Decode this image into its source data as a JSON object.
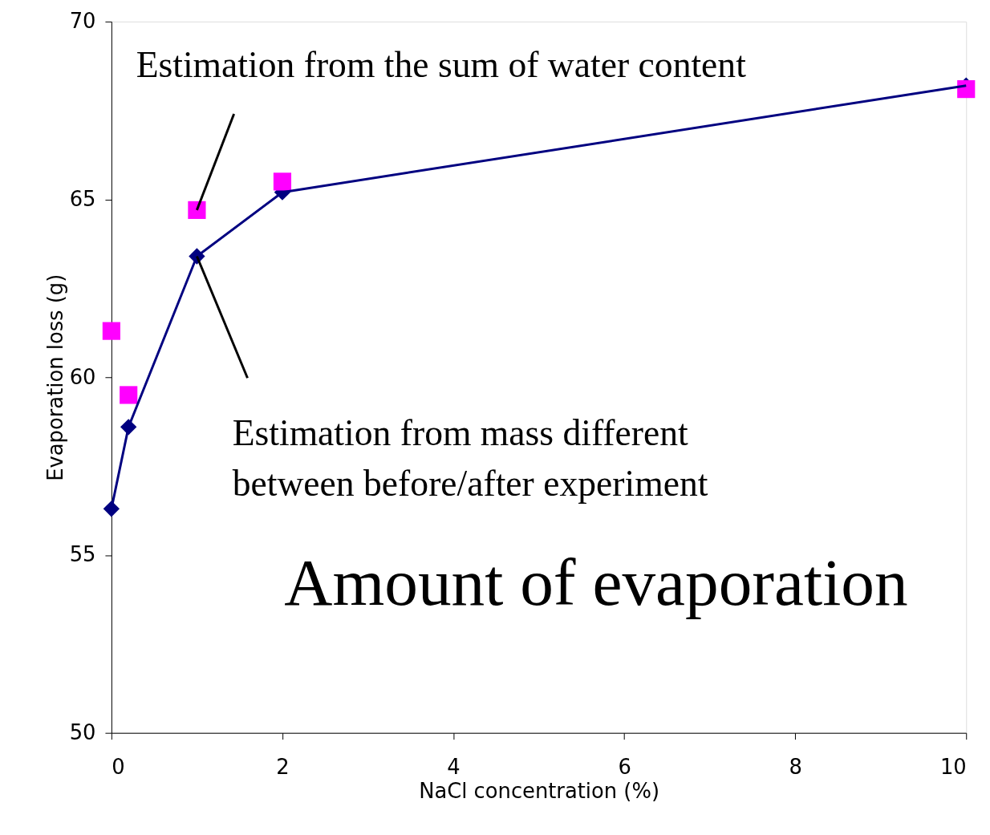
{
  "chart_data": {
    "type": "line",
    "xlabel": "NaCl concentration (%)",
    "ylabel": "Evaporation loss (g)",
    "xlim": [
      0,
      10
    ],
    "xticks": [
      0,
      2,
      4,
      6,
      8,
      10
    ],
    "ylim": [
      50,
      70
    ],
    "yticks": [
      50,
      55,
      60,
      65,
      70
    ],
    "grid": false,
    "series": [
      {
        "color": "#000080",
        "marker": "diamond",
        "x": [
          0,
          0.2,
          1,
          2,
          10
        ],
        "values": [
          56.3,
          58.6,
          63.4,
          65.2,
          68.2
        ]
      },
      {
        "type": "scatter",
        "color": "#ff00ff",
        "marker": "square",
        "x": [
          0,
          0.2,
          1,
          2,
          10
        ],
        "values": [
          61.3,
          59.5,
          64.7,
          65.5,
          68.1
        ]
      }
    ],
    "annotations": [
      {
        "text": "Estimation from the sum of water content",
        "x": 1,
        "y": 64.7
      },
      {
        "text": "Estimation from mass different\nbetween before/after experiment",
        "x": 1,
        "y": 63.4
      },
      "Amount of evaporation"
    ]
  }
}
